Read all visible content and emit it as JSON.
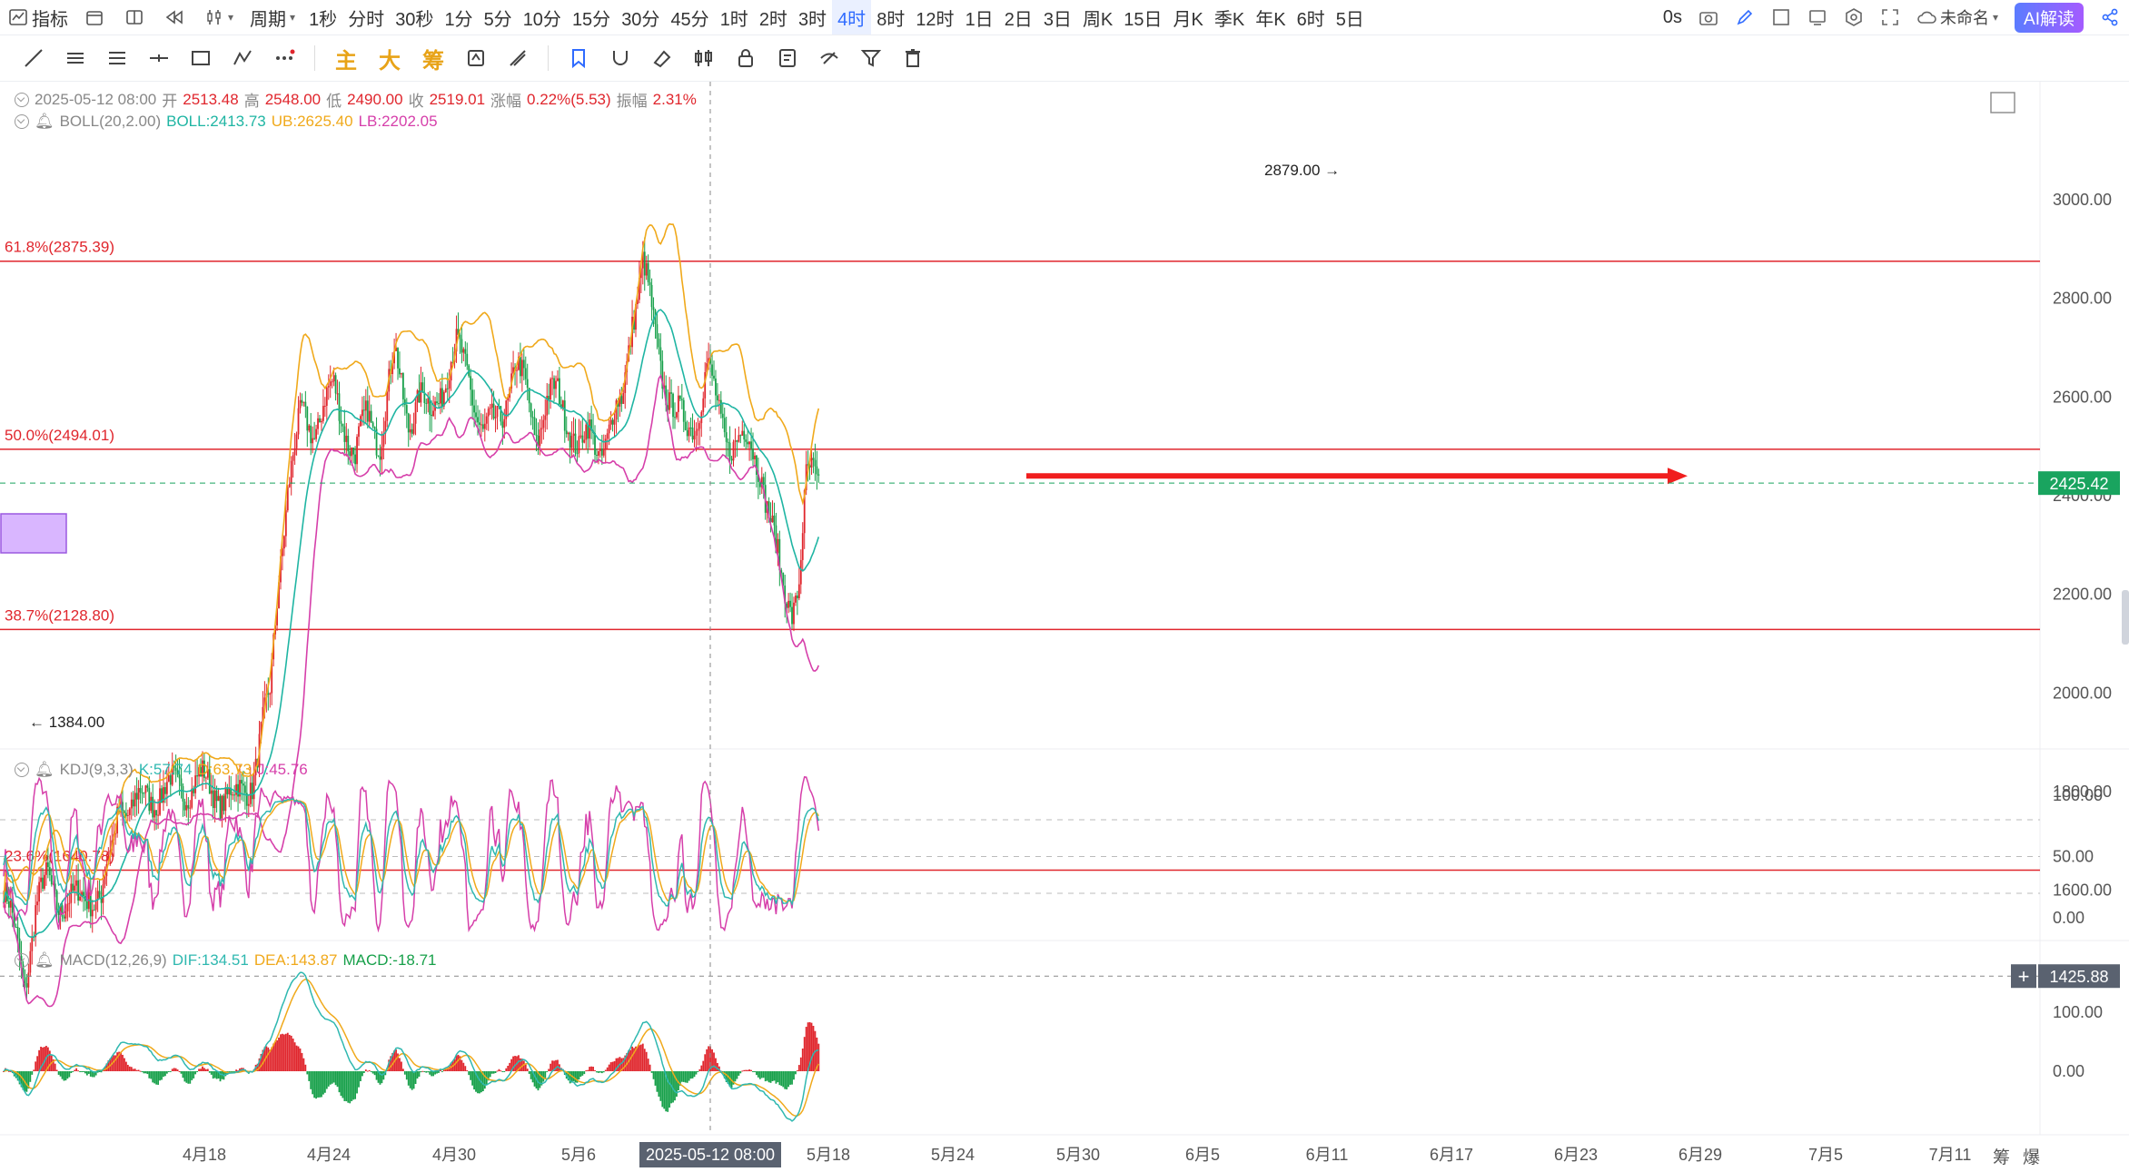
{
  "toolbar": {
    "indicator_label": "指标",
    "period_label": "周期",
    "periods": [
      "1秒",
      "分时",
      "30秒",
      "1分",
      "5分",
      "10分",
      "15分",
      "30分",
      "45分",
      "1时",
      "2时",
      "3时",
      "4时",
      "8时",
      "12时",
      "1日",
      "2日",
      "3日",
      "周K",
      "15日",
      "月K",
      "季K",
      "年K",
      "6时",
      "5日"
    ],
    "active_period": "4时",
    "timer": "0s",
    "layout_name": "未命名",
    "ai_button": "AI解读"
  },
  "drawing_tools": {
    "text_buttons": [
      "主",
      "大",
      "筹"
    ]
  },
  "header": {
    "date": "2025-05-12 08:00",
    "open_label": "开",
    "open": "2513.48",
    "high_label": "高",
    "high": "2548.00",
    "low_label": "低",
    "low": "2490.00",
    "close_label": "收",
    "close": "2519.01",
    "change_label": "涨幅",
    "change": "0.22%(5.53)",
    "amp_label": "振幅",
    "amp": "2.31%"
  },
  "boll_legend": {
    "name": "BOLL(20,2.00)",
    "mid": "BOLL:2413.73",
    "ub": "UB:2625.40",
    "lb": "LB:2202.05"
  },
  "kdj_legend": {
    "name": "KDJ(9,3,3)",
    "k": "K:57.74",
    "d": "D:63.73",
    "j": "J:45.76"
  },
  "macd_legend": {
    "name": "MACD(12,26,9)",
    "dif": "DIF:134.51",
    "dea": "DEA:143.87",
    "macd": "MACD:-18.71"
  },
  "colors": {
    "up": "#e0262d",
    "down": "#17a04a",
    "boll_mid": "#1fb5a3",
    "boll_ub": "#f0a91b",
    "boll_lb": "#d63faa",
    "k": "#2fb8b0",
    "d": "#f0a91b",
    "j": "#d63faa",
    "fib": "#e0262d",
    "price_tag": "#19a45f",
    "cross_tag": "#5a6270"
  },
  "chart_data": {
    "type": "candlestick",
    "period": "4时",
    "y_axis_main": {
      "ticks": [
        3000,
        2800,
        2600,
        2400,
        2200,
        2000,
        1800,
        1600
      ],
      "range": [
        1340,
        3060
      ]
    },
    "x_axis": {
      "ticks": [
        "4月18",
        "4月24",
        "4月30",
        "5月6",
        "5月18",
        "5月24",
        "5月30",
        "6月5",
        "6月11",
        "6月17",
        "6月23",
        "6月29",
        "7月5",
        "7月11"
      ],
      "crosshair_label": "2025-05-12 08:00"
    },
    "fib_levels": [
      {
        "label": "61.8%(2875.39)",
        "value": 2875.39
      },
      {
        "label": "50.0%(2494.01)",
        "value": 2494.01
      },
      {
        "label": "38.7%(2128.80)",
        "value": 2128.8
      },
      {
        "label": "23.6%(1640.78)",
        "value": 1640.78
      }
    ],
    "last_price": "2425.42",
    "last_price_value": 2425.42,
    "crosshair_price": "1425.88",
    "crosshair_price_value": 1425.88,
    "annotations": {
      "max": "2879.00",
      "min": "1384.00"
    },
    "price_anchors": [
      [
        0,
        1600
      ],
      [
        12,
        1420
      ],
      [
        18,
        1560
      ],
      [
        25,
        1620
      ],
      [
        32,
        1580
      ],
      [
        40,
        1570
      ],
      [
        48,
        1600
      ],
      [
        55,
        1580
      ],
      [
        62,
        1700
      ],
      [
        65,
        1790
      ],
      [
        72,
        1760
      ],
      [
        80,
        1790
      ],
      [
        90,
        1800
      ],
      [
        100,
        1810
      ],
      [
        110,
        1820
      ],
      [
        120,
        1800
      ],
      [
        130,
        1780
      ],
      [
        140,
        1830
      ],
      [
        150,
        1990
      ],
      [
        155,
        2250
      ],
      [
        160,
        2420
      ],
      [
        168,
        2560
      ],
      [
        175,
        2540
      ],
      [
        180,
        2580
      ],
      [
        186,
        2610
      ],
      [
        192,
        2550
      ],
      [
        198,
        2480
      ],
      [
        205,
        2560
      ],
      [
        212,
        2520
      ],
      [
        220,
        2680
      ],
      [
        228,
        2560
      ],
      [
        234,
        2600
      ],
      [
        240,
        2560
      ],
      [
        248,
        2640
      ],
      [
        255,
        2690
      ],
      [
        262,
        2650
      ],
      [
        270,
        2520
      ],
      [
        276,
        2540
      ],
      [
        282,
        2590
      ],
      [
        288,
        2660
      ],
      [
        294,
        2610
      ],
      [
        300,
        2530
      ],
      [
        306,
        2590
      ],
      [
        312,
        2600
      ],
      [
        318,
        2560
      ],
      [
        324,
        2490
      ],
      [
        330,
        2520
      ],
      [
        336,
        2500
      ],
      [
        342,
        2540
      ],
      [
        348,
        2580
      ],
      [
        354,
        2770
      ],
      [
        360,
        2870
      ],
      [
        366,
        2740
      ],
      [
        372,
        2640
      ],
      [
        378,
        2570
      ],
      [
        384,
        2530
      ],
      [
        390,
        2560
      ],
      [
        396,
        2660
      ],
      [
        402,
        2570
      ],
      [
        408,
        2520
      ],
      [
        414,
        2510
      ],
      [
        420,
        2500
      ],
      [
        426,
        2470
      ],
      [
        432,
        2340
      ],
      [
        438,
        2220
      ],
      [
        444,
        2180
      ],
      [
        448,
        2230
      ],
      [
        452,
        2420
      ],
      [
        456,
        2440
      ],
      [
        460,
        2425
      ]
    ],
    "kdj": {
      "axis_ticks": [
        100.0,
        50.0,
        0.0
      ],
      "last": {
        "k": 57.74,
        "d": 63.73,
        "j": 45.76
      }
    },
    "macd": {
      "axis_ticks": [
        100.0,
        0.0
      ],
      "last": {
        "dif": 134.51,
        "dea": 143.87,
        "macd": -18.71
      }
    }
  },
  "side_labels": {
    "bottom_right_1": "筹",
    "bottom_right_2": "爆"
  }
}
